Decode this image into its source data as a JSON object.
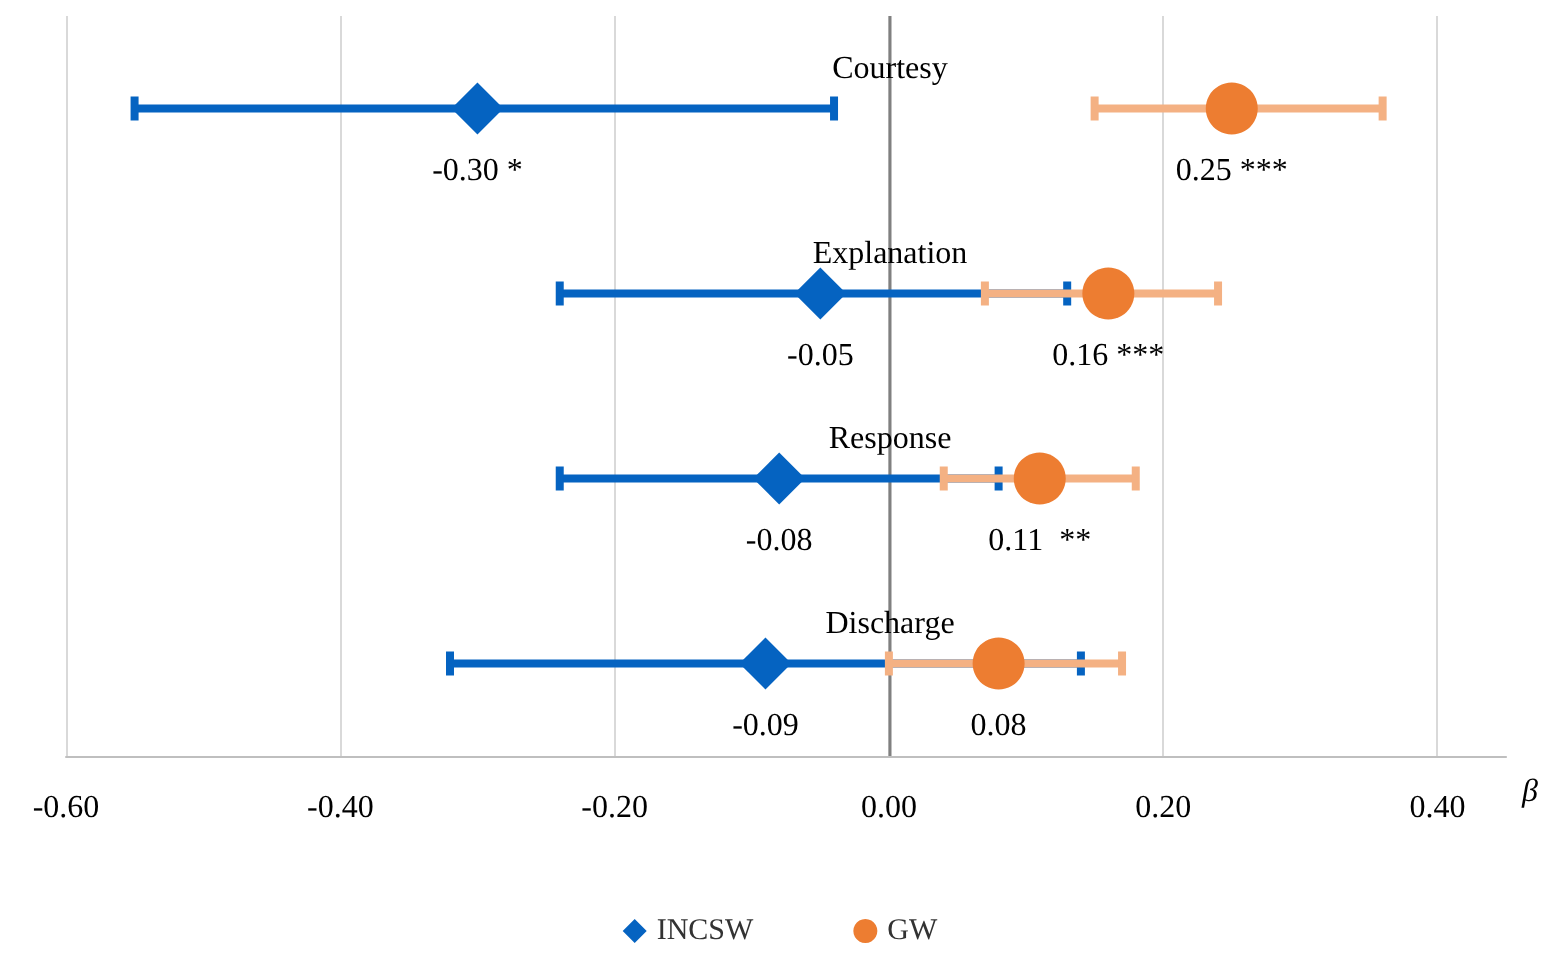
{
  "chart_data": {
    "type": "scatter",
    "orientation": "horizontal",
    "xlabel": "β",
    "categories": [
      "Courtesy",
      "Explanation",
      "Response",
      "Discharge"
    ],
    "xlim": [
      -0.6,
      0.45
    ],
    "xticks": [
      {
        "value": -0.6,
        "label": "-0.60"
      },
      {
        "value": -0.4,
        "label": "-0.40"
      },
      {
        "value": -0.2,
        "label": "-0.20"
      },
      {
        "value": 0,
        "label": "0.00"
      },
      {
        "value": 0.2,
        "label": "0.20"
      },
      {
        "value": 0.4,
        "label": "0.40"
      }
    ],
    "grid": "x",
    "legend": "bottom",
    "series": [
      {
        "name": "INCSW",
        "color": "#0563c1",
        "marker": "diamond",
        "values": [
          -0.3,
          -0.05,
          -0.08,
          -0.09
        ],
        "errors": [
          [
            -0.55,
            -0.04
          ],
          [
            -0.24,
            0.13
          ],
          [
            -0.24,
            0.08
          ],
          [
            -0.32,
            0.14
          ]
        ],
        "value_labels": [
          "-0.30 *",
          "-0.05",
          "-0.08",
          "-0.09"
        ]
      },
      {
        "name": "GW",
        "color": "#ed7d31",
        "marker": "circle",
        "values": [
          0.25,
          0.16,
          0.11,
          0.08
        ],
        "errors": [
          [
            0.15,
            0.36
          ],
          [
            0.07,
            0.24
          ],
          [
            0.04,
            0.18
          ],
          [
            0.0,
            0.17
          ]
        ],
        "value_labels": [
          "0.25 ***",
          "0.16 ***",
          "0.11  **",
          "0.08"
        ]
      }
    ]
  }
}
